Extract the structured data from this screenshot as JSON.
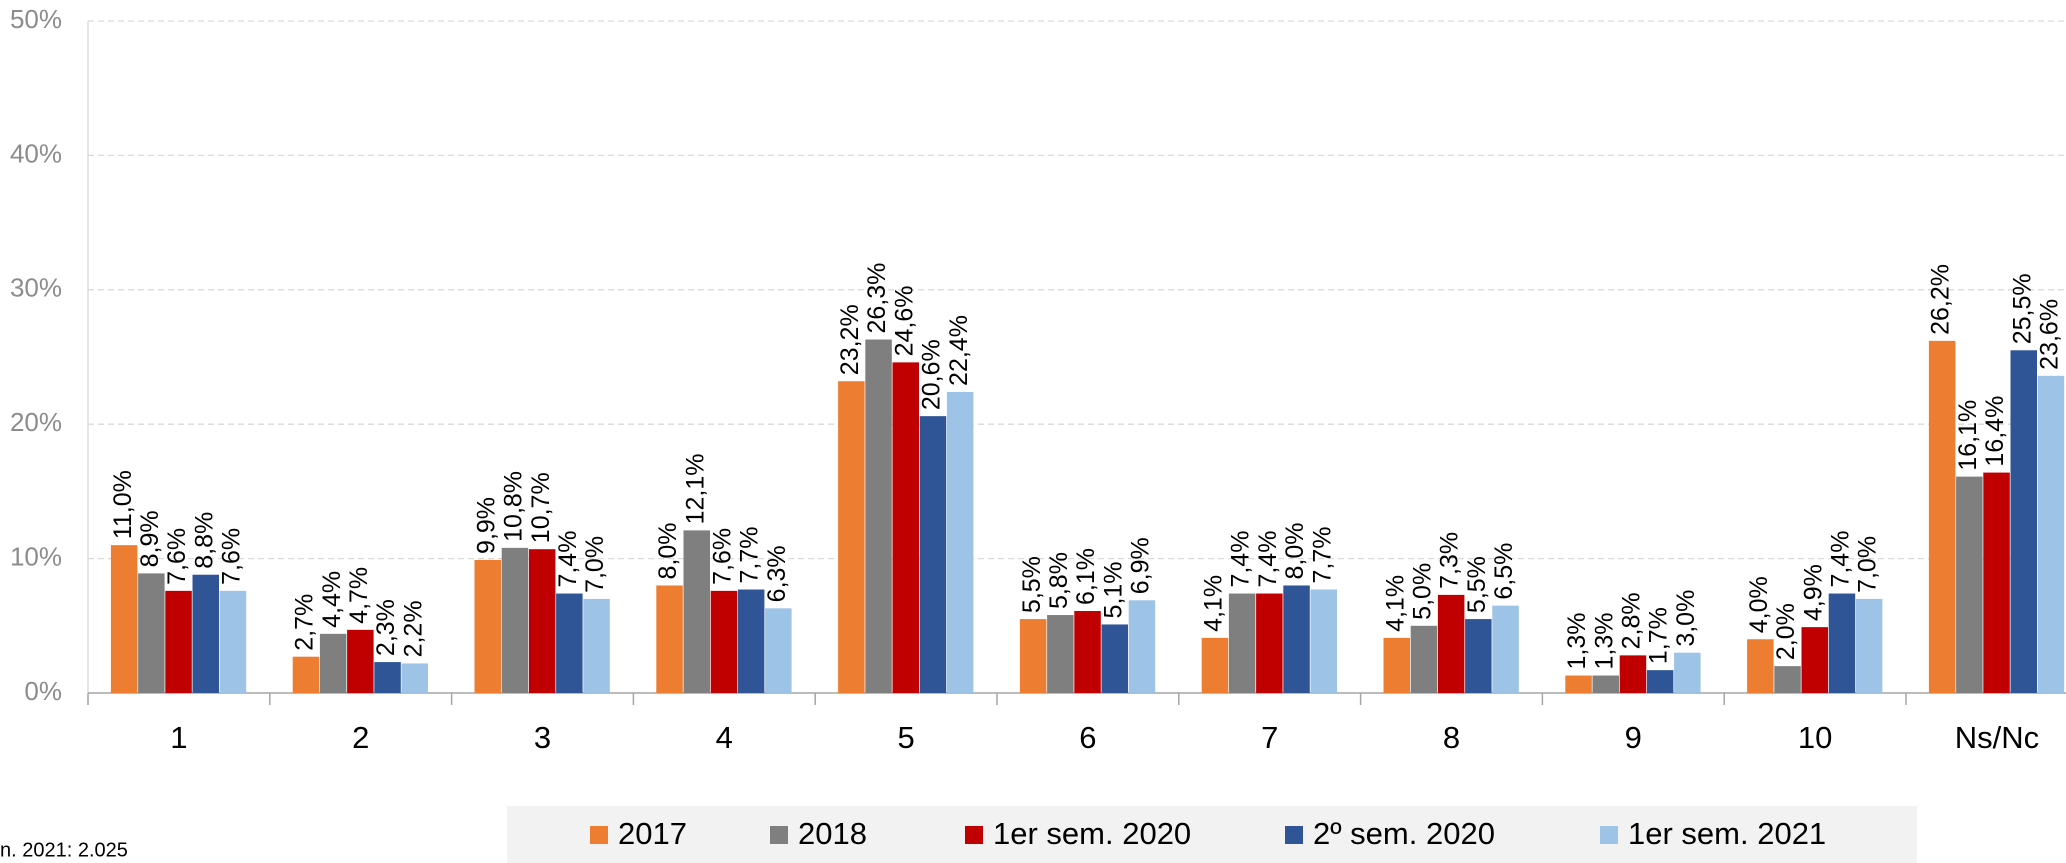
{
  "chart_data": {
    "type": "bar",
    "categories": [
      "1",
      "2",
      "3",
      "4",
      "5",
      "6",
      "7",
      "8",
      "9",
      "10",
      "Ns/Nc"
    ],
    "series": [
      {
        "name": "2017",
        "color": "#ED7D31",
        "values": [
          11.0,
          2.7,
          9.9,
          8.0,
          23.2,
          5.5,
          4.1,
          4.1,
          1.3,
          4.0,
          26.2
        ],
        "value_labels": [
          "11,0%",
          "2,7%",
          "9,9%",
          "8,0%",
          "23,2%",
          "5,5%",
          "4,1%",
          "4,1%",
          "1,3%",
          "4,0%",
          "26,2%"
        ]
      },
      {
        "name": "2018",
        "color": "#7F7F7F",
        "values": [
          8.9,
          4.4,
          10.8,
          12.1,
          26.3,
          5.8,
          7.4,
          5.0,
          1.3,
          2.0,
          16.1
        ],
        "value_labels": [
          "8,9%",
          "4,4%",
          "10,8%",
          "12,1%",
          "26,3%",
          "5,8%",
          "7,4%",
          "5,0%",
          "1,3%",
          "2,0%",
          "16,1%"
        ]
      },
      {
        "name": "1er sem. 2020",
        "color": "#C00000",
        "values": [
          7.6,
          4.7,
          10.7,
          7.6,
          24.6,
          6.1,
          7.4,
          7.3,
          2.8,
          4.9,
          16.4
        ],
        "value_labels": [
          "7,6%",
          "4,7%",
          "10,7%",
          "7,6%",
          "24,6%",
          "6,1%",
          "7,4%",
          "7,3%",
          "2,8%",
          "4,9%",
          "16,4%"
        ]
      },
      {
        "name": "2º sem. 2020",
        "color": "#2F5597",
        "values": [
          8.8,
          2.3,
          7.4,
          7.7,
          20.6,
          5.1,
          8.0,
          5.5,
          1.7,
          7.4,
          25.5
        ],
        "value_labels": [
          "8,8%",
          "2,3%",
          "7,4%",
          "7,7%",
          "20,6%",
          "5,1%",
          "8,0%",
          "5,5%",
          "1,7%",
          "7,4%",
          "25,5%"
        ]
      },
      {
        "name": "1er sem. 2021",
        "color": "#9DC3E6",
        "values": [
          7.6,
          2.2,
          7.0,
          6.3,
          22.4,
          6.9,
          7.7,
          6.5,
          3.0,
          7.0,
          23.6
        ],
        "value_labels": [
          "7,6%",
          "2,2%",
          "7,0%",
          "6,3%",
          "22,4%",
          "6,9%",
          "7,7%",
          "6,5%",
          "3,0%",
          "7,0%",
          "23,6%"
        ]
      }
    ],
    "ylim": [
      0,
      50
    ],
    "yticks": [
      {
        "value": 0,
        "label": "0%"
      },
      {
        "value": 10,
        "label": "10%"
      },
      {
        "value": 20,
        "label": "20%"
      },
      {
        "value": 30,
        "label": "30%"
      },
      {
        "value": 40,
        "label": "40%"
      },
      {
        "value": 50,
        "label": "50%"
      }
    ],
    "grid": true,
    "legend": "bottom",
    "note": "n. 2021: 2.025"
  }
}
